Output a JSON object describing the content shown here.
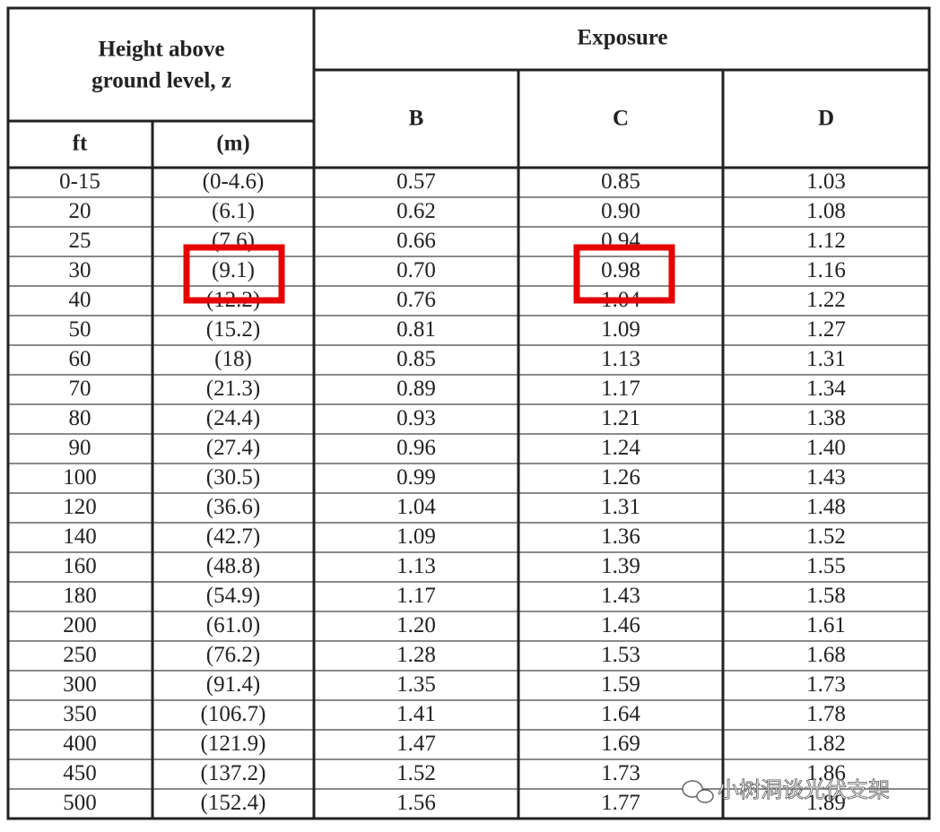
{
  "header": {
    "height_line1": "Height above",
    "height_line2": "ground level, z",
    "ft": "ft",
    "m": "(m)",
    "exposure": "Exposure",
    "b": "B",
    "c": "C",
    "d": "D"
  },
  "table": {
    "rows": [
      [
        "0-15",
        "(0-4.6)",
        "0.57",
        "0.85",
        "1.03"
      ],
      [
        "20",
        "(6.1)",
        "0.62",
        "0.90",
        "1.08"
      ],
      [
        "25",
        "(7.6)",
        "0.66",
        "0.94",
        "1.12"
      ],
      [
        "30",
        "(9.1)",
        "0.70",
        "0.98",
        "1.16"
      ],
      [
        "40",
        "(12.2)",
        "0.76",
        "1.04",
        "1.22"
      ],
      [
        "50",
        "(15.2)",
        "0.81",
        "1.09",
        "1.27"
      ],
      [
        "60",
        "(18)",
        "0.85",
        "1.13",
        "1.31"
      ],
      [
        "70",
        "(21.3)",
        "0.89",
        "1.17",
        "1.34"
      ],
      [
        "80",
        "(24.4)",
        "0.93",
        "1.21",
        "1.38"
      ],
      [
        "90",
        "(27.4)",
        "0.96",
        "1.24",
        "1.40"
      ],
      [
        "100",
        "(30.5)",
        "0.99",
        "1.26",
        "1.43"
      ],
      [
        "120",
        "(36.6)",
        "1.04",
        "1.31",
        "1.48"
      ],
      [
        "140",
        "(42.7)",
        "1.09",
        "1.36",
        "1.52"
      ],
      [
        "160",
        "(48.8)",
        "1.13",
        "1.39",
        "1.55"
      ],
      [
        "180",
        "(54.9)",
        "1.17",
        "1.43",
        "1.58"
      ],
      [
        "200",
        "(61.0)",
        "1.20",
        "1.46",
        "1.61"
      ],
      [
        "250",
        "(76.2)",
        "1.28",
        "1.53",
        "1.68"
      ],
      [
        "300",
        "(91.4)",
        "1.35",
        "1.59",
        "1.73"
      ],
      [
        "350",
        "(106.7)",
        "1.41",
        "1.64",
        "1.78"
      ],
      [
        "400",
        "(121.9)",
        "1.47",
        "1.69",
        "1.82"
      ],
      [
        "450",
        "(137.2)",
        "1.52",
        "1.73",
        "1.86"
      ],
      [
        "500",
        "(152.4)",
        "1.56",
        "1.77",
        "1.89"
      ]
    ]
  },
  "watermark": "小树洞谈光伏支架"
}
